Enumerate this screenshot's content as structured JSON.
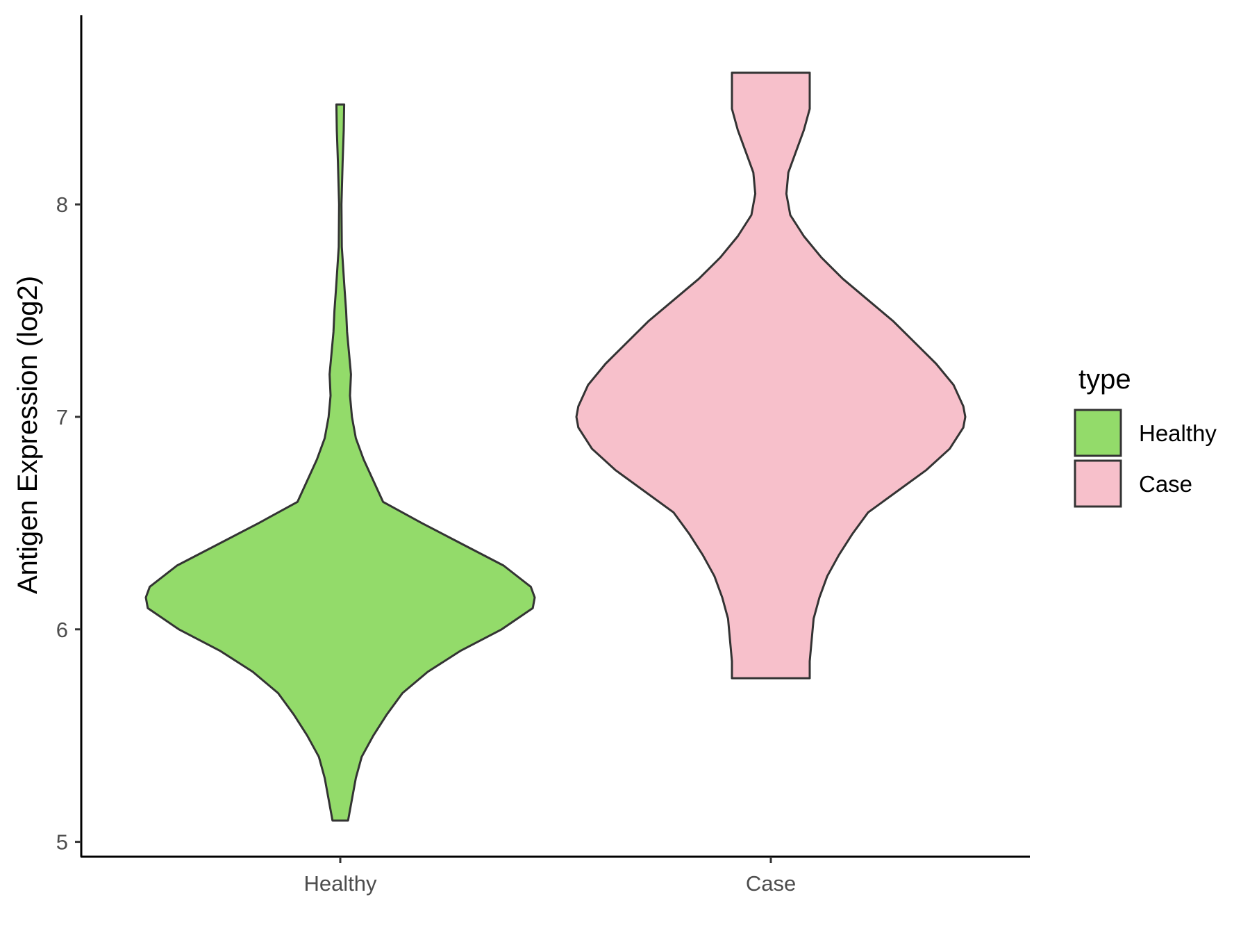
{
  "chart_data": {
    "type": "violin",
    "title": "",
    "xlabel": "",
    "ylabel": "Antigen Expression (log2)",
    "ylim": [
      4.93,
      8.89
    ],
    "yticks": [
      5,
      6,
      7,
      8
    ],
    "categories": [
      "Healthy",
      "Case"
    ],
    "grid": false,
    "legend": {
      "title": "type",
      "position": "right",
      "entries": [
        "Healthy",
        "Case"
      ]
    },
    "series": [
      {
        "name": "Healthy",
        "color": "#93DB6A",
        "min": 5.1,
        "max": 8.47,
        "density_profile": [
          [
            5.1,
            0.04
          ],
          [
            5.2,
            0.06
          ],
          [
            5.3,
            0.08
          ],
          [
            5.4,
            0.11
          ],
          [
            5.5,
            0.17
          ],
          [
            5.6,
            0.24
          ],
          [
            5.7,
            0.32
          ],
          [
            5.8,
            0.45
          ],
          [
            5.9,
            0.62
          ],
          [
            6.0,
            0.83
          ],
          [
            6.1,
            0.99
          ],
          [
            6.15,
            1.0
          ],
          [
            6.2,
            0.98
          ],
          [
            6.3,
            0.84
          ],
          [
            6.4,
            0.63
          ],
          [
            6.5,
            0.42
          ],
          [
            6.6,
            0.22
          ],
          [
            6.7,
            0.17
          ],
          [
            6.8,
            0.12
          ],
          [
            6.9,
            0.08
          ],
          [
            7.0,
            0.06
          ],
          [
            7.1,
            0.05
          ],
          [
            7.2,
            0.055
          ],
          [
            7.3,
            0.045
          ],
          [
            7.4,
            0.035
          ],
          [
            7.5,
            0.03
          ],
          [
            7.6,
            0.022
          ],
          [
            7.7,
            0.015
          ],
          [
            7.8,
            0.008
          ],
          [
            8.0,
            0.006
          ],
          [
            8.2,
            0.012
          ],
          [
            8.35,
            0.018
          ],
          [
            8.47,
            0.02
          ]
        ]
      },
      {
        "name": "Case",
        "color": "#F7C0CB",
        "min": 5.77,
        "max": 8.62,
        "density_profile": [
          [
            5.77,
            0.2
          ],
          [
            5.85,
            0.2
          ],
          [
            5.95,
            0.21
          ],
          [
            6.05,
            0.22
          ],
          [
            6.15,
            0.25
          ],
          [
            6.25,
            0.29
          ],
          [
            6.35,
            0.35
          ],
          [
            6.45,
            0.42
          ],
          [
            6.55,
            0.5
          ],
          [
            6.65,
            0.65
          ],
          [
            6.75,
            0.8
          ],
          [
            6.85,
            0.92
          ],
          [
            6.95,
            0.99
          ],
          [
            7.0,
            1.0
          ],
          [
            7.05,
            0.99
          ],
          [
            7.15,
            0.94
          ],
          [
            7.25,
            0.85
          ],
          [
            7.35,
            0.74
          ],
          [
            7.45,
            0.63
          ],
          [
            7.55,
            0.5
          ],
          [
            7.65,
            0.37
          ],
          [
            7.75,
            0.26
          ],
          [
            7.85,
            0.17
          ],
          [
            7.95,
            0.1
          ],
          [
            8.05,
            0.08
          ],
          [
            8.15,
            0.09
          ],
          [
            8.25,
            0.13
          ],
          [
            8.35,
            0.17
          ],
          [
            8.45,
            0.2
          ],
          [
            8.55,
            0.2
          ],
          [
            8.62,
            0.2
          ]
        ]
      }
    ]
  }
}
